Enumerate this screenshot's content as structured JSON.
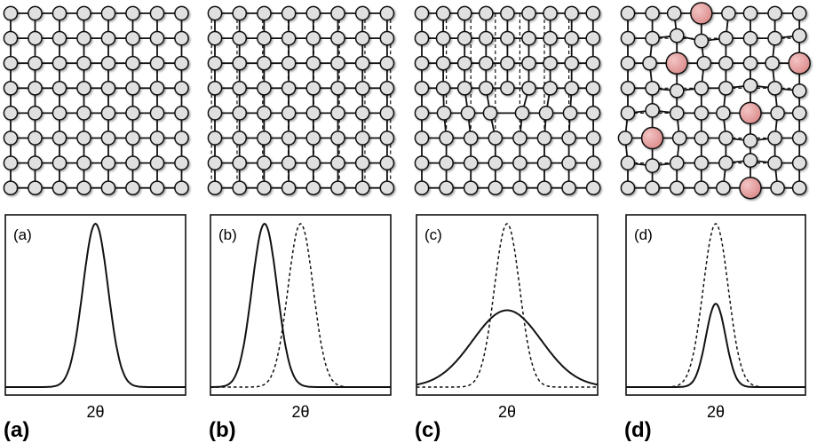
{
  "panels": [
    {
      "id": "a",
      "inner_label": "(a)",
      "big_label": "(a)",
      "xlabel": "2θ",
      "lattice": "perfect"
    },
    {
      "id": "b",
      "inner_label": "(b)",
      "big_label": "(b)",
      "xlabel": "2θ",
      "lattice": "uniform-strain"
    },
    {
      "id": "c",
      "inner_label": "(c)",
      "big_label": "(c)",
      "xlabel": "2θ",
      "lattice": "edge-dislocation"
    },
    {
      "id": "d",
      "inner_label": "(d)",
      "big_label": "(d)",
      "xlabel": "2θ",
      "lattice": "substitutional-impurities"
    }
  ],
  "colors": {
    "node": "#e0e0e0",
    "impurity": "#e8a0a0",
    "line": "#111111"
  },
  "impurity_sites": [
    [
      0,
      3
    ],
    [
      2,
      2
    ],
    [
      2,
      7
    ],
    [
      4,
      5
    ],
    [
      5,
      1
    ],
    [
      7,
      5
    ]
  ],
  "chart_data": [
    {
      "type": "line",
      "panel": "a",
      "xlabel": "2θ",
      "xlim": [
        0,
        100
      ],
      "series": [
        {
          "style": "solid",
          "center": 50,
          "width": 7,
          "height": 1.0
        }
      ]
    },
    {
      "type": "line",
      "panel": "b",
      "xlabel": "2θ",
      "xlim": [
        0,
        100
      ],
      "series": [
        {
          "style": "solid",
          "center": 30,
          "width": 7,
          "height": 1.0
        },
        {
          "style": "dashed",
          "center": 50,
          "width": 7,
          "height": 1.0
        }
      ]
    },
    {
      "type": "line",
      "panel": "c",
      "xlabel": "2θ",
      "xlim": [
        0,
        100
      ],
      "series": [
        {
          "style": "dashed",
          "center": 50,
          "width": 7,
          "height": 1.0
        },
        {
          "style": "solid",
          "center": 50,
          "width": 19,
          "height": 0.47
        }
      ]
    },
    {
      "type": "line",
      "panel": "d",
      "xlabel": "2θ",
      "xlim": [
        0,
        100
      ],
      "series": [
        {
          "style": "dashed",
          "center": 50,
          "width": 7,
          "height": 1.0
        },
        {
          "style": "solid",
          "center": 50,
          "width": 5.5,
          "height": 0.51
        }
      ]
    }
  ]
}
